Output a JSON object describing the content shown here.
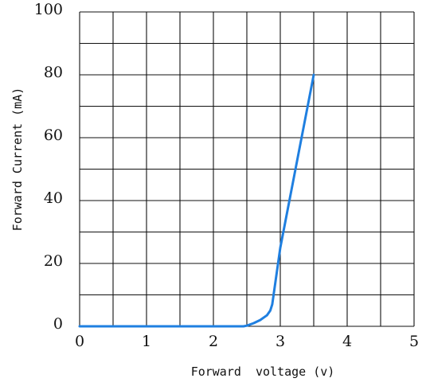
{
  "chart_data": {
    "type": "line",
    "title": "",
    "xlabel": "Forward  voltage (v)",
    "ylabel": "Forward Current (mA)",
    "xlim": [
      0,
      5
    ],
    "ylim": [
      0,
      100
    ],
    "x_ticks": [
      0,
      1,
      2,
      3,
      4,
      5
    ],
    "y_ticks": [
      0,
      20,
      40,
      60,
      80,
      100
    ],
    "x_grid_step": 0.5,
    "y_grid_step": 10,
    "grid": true,
    "legend": "none",
    "series": [
      {
        "color": "#1f7fe0",
        "x": [
          0,
          2.45,
          2.5,
          2.6,
          2.7,
          2.8,
          2.85,
          2.88,
          2.9,
          3.0,
          3.1,
          3.2,
          3.3,
          3.4,
          3.5
        ],
        "y": [
          0,
          0,
          0.2,
          1,
          2,
          3.5,
          5,
          7,
          10,
          25,
          36,
          47,
          58,
          69,
          80
        ]
      }
    ]
  }
}
